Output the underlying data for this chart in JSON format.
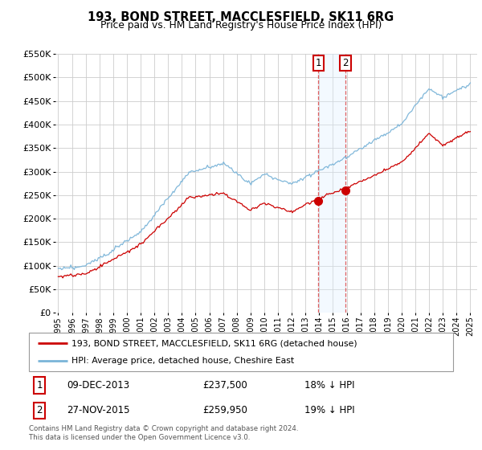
{
  "title": "193, BOND STREET, MACCLESFIELD, SK11 6RG",
  "subtitle": "Price paid vs. HM Land Registry's House Price Index (HPI)",
  "legend_line1": "193, BOND STREET, MACCLESFIELD, SK11 6RG (detached house)",
  "legend_line2": "HPI: Average price, detached house, Cheshire East",
  "footnote": "Contains HM Land Registry data © Crown copyright and database right 2024.\nThis data is licensed under the Open Government Licence v3.0.",
  "transactions": [
    {
      "num": 1,
      "date": "09-DEC-2013",
      "price": "£237,500",
      "hpi_diff": "18% ↓ HPI"
    },
    {
      "num": 2,
      "date": "27-NOV-2015",
      "price": "£259,950",
      "hpi_diff": "19% ↓ HPI"
    }
  ],
  "marker1_x": 2013.94,
  "marker1_y": 237500,
  "marker2_x": 2015.9,
  "marker2_y": 259950,
  "hpi_color": "#7ab4d8",
  "price_color": "#cc0000",
  "highlight_color": "#ddeeff",
  "vline_color": "#e06060",
  "ylim": [
    0,
    550000
  ],
  "yticks": [
    0,
    50000,
    100000,
    150000,
    200000,
    250000,
    300000,
    350000,
    400000,
    450000,
    500000,
    550000
  ],
  "xmin": 1994.8,
  "xmax": 2025.5,
  "background_color": "#ffffff",
  "grid_color": "#cccccc",
  "plot_bg": "#f8f8f8"
}
